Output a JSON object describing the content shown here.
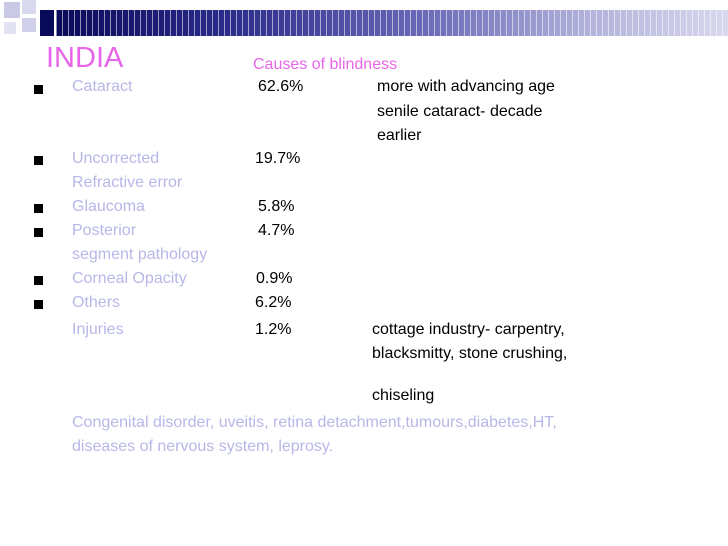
{
  "slide": {
    "title": "INDIA",
    "subtitle": "Causes of blindness",
    "items": [
      {
        "label": "Cataract",
        "value": "62.6%",
        "note": [
          "more with advancing age",
          "senile cataract- decade",
          "earlier"
        ]
      },
      {
        "label": [
          "Uncorrected",
          "Refractive error"
        ],
        "value": "19.7%"
      },
      {
        "label": "Glaucoma",
        "value": "5.8%"
      },
      {
        "label": [
          "Posterior",
          "segment pathology"
        ],
        "value": "4.7%"
      },
      {
        "label": "Corneal Opacity",
        "value": "0.9%"
      },
      {
        "label": "Others",
        "value": "6.2%"
      }
    ],
    "injuries": {
      "label": "Injuries",
      "value": "1.2%",
      "note": [
        "cottage industry- carpentry,",
        "blacksmitty, stone crushing,",
        "chiseling"
      ]
    },
    "footer": [
      "Congenital disorder, uveitis, retina detachment,tumours,diabetes,HT,",
      "diseases of nervous system, leprosy."
    ]
  },
  "colors": {
    "title": "#e765e8",
    "pale_text": "#b7b7e8",
    "body_text": "#000000",
    "header_band": "#2a2a8a"
  }
}
